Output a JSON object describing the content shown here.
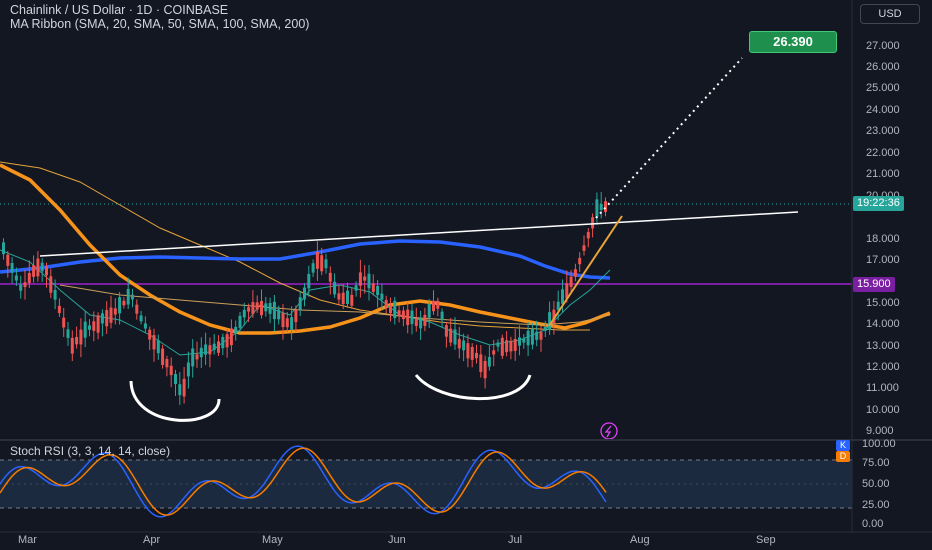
{
  "header": {
    "symbol_line": "Chainlink / US Dollar · 1D · COINBASE",
    "indicator_line": "MA Ribbon (SMA, 20, SMA, 50, SMA, 100, SMA, 200)"
  },
  "currency_button": "USD",
  "price_axis": [
    "27.000",
    "26.000",
    "25.000",
    "24.000",
    "23.000",
    "22.000",
    "21.000",
    "20.000",
    "18.000",
    "17.000",
    "15.000",
    "14.000",
    "13.000",
    "12.000",
    "11.000",
    "10.000",
    "9.000"
  ],
  "tags": {
    "countdown": "19:22:36",
    "level": "15.900",
    "target": "26.390"
  },
  "rsi": {
    "label": "Stoch RSI (3, 3, 14, 14, close)",
    "axis": [
      "100.00",
      "75.00",
      "50.00",
      "25.00",
      "0.00"
    ],
    "k_badge": "K",
    "d_badge": "D"
  },
  "time_axis": [
    "Mar",
    "Apr",
    "May",
    "Jun",
    "Jul",
    "Aug",
    "Sep"
  ],
  "colors": {
    "background": "#131722",
    "up_candle": "#26a69a",
    "down_candle": "#ef5350",
    "ma_blue": "#2962ff",
    "ma_orange": "#f7931a",
    "level_purple": "#7b1fa2",
    "target_green": "#1f8f4e",
    "stoch_k": "#2962ff",
    "stoch_d": "#f57c00"
  },
  "icons": {
    "alert": "lightning-alert-icon"
  }
}
